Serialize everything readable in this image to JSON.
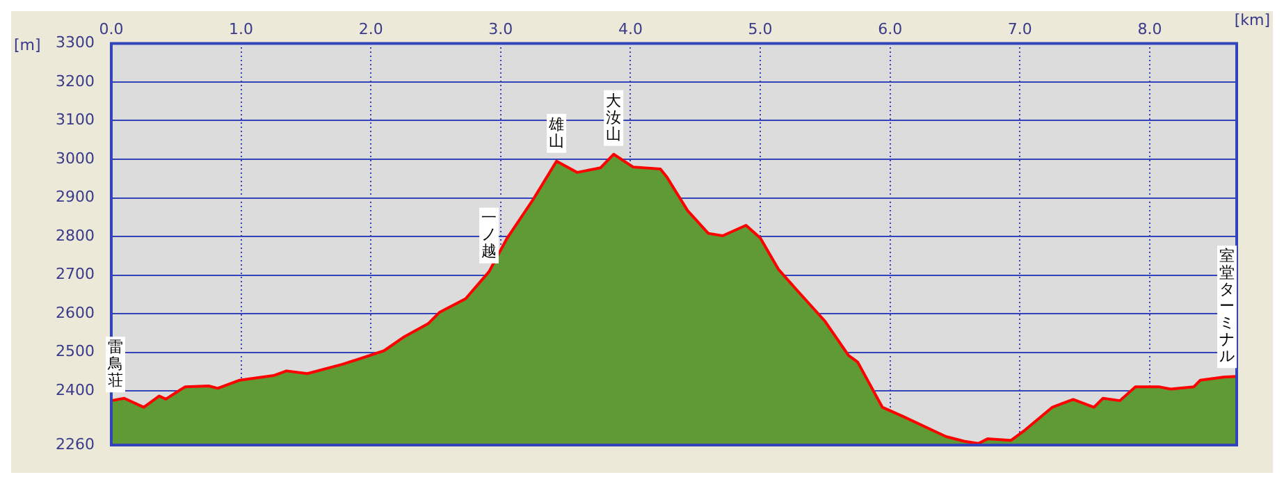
{
  "chart_data": {
    "type": "area",
    "xlabel": "[km]",
    "ylabel": "[m]",
    "xlim": [
      0,
      8.67
    ],
    "ylim": [
      2260,
      3300
    ],
    "xticks": [
      {
        "value": 0,
        "label": "0.0"
      },
      {
        "value": 1,
        "label": "1.0"
      },
      {
        "value": 2,
        "label": "2.0"
      },
      {
        "value": 3,
        "label": "3.0"
      },
      {
        "value": 4,
        "label": "4.0"
      },
      {
        "value": 5,
        "label": "5.0"
      },
      {
        "value": 6,
        "label": "6.0"
      },
      {
        "value": 7,
        "label": "7.0"
      },
      {
        "value": 8,
        "label": "8.0"
      }
    ],
    "yticks": [
      2260,
      2400,
      2500,
      2600,
      2700,
      2800,
      2900,
      3000,
      3100,
      3200,
      3300
    ],
    "grid": true,
    "series": [
      {
        "color": "#5f9a35",
        "x": [
          0,
          0.1,
          0.25,
          0.37,
          0.42,
          0.57,
          0.75,
          0.82,
          0.99,
          1.25,
          1.35,
          1.51,
          1.78,
          2.1,
          2.25,
          2.44,
          2.53,
          2.73,
          2.91,
          3.05,
          3.25,
          3.43,
          3.59,
          3.77,
          3.87,
          4.02,
          4.23,
          4.28,
          4.44,
          4.6,
          4.71,
          4.89,
          5,
          5.14,
          5.28,
          5.5,
          5.68,
          5.75,
          5.94,
          6.1,
          6.43,
          6.57,
          6.68,
          6.75,
          6.93,
          7.04,
          7.25,
          7.41,
          7.57,
          7.64,
          7.77,
          7.89,
          8.07,
          8.16,
          8.34,
          8.39,
          8.57,
          8.67
        ],
        "values": [
          2375,
          2381,
          2358,
          2387,
          2379,
          2411,
          2413,
          2407,
          2428,
          2440,
          2452,
          2445,
          2469,
          2504,
          2539,
          2574,
          2604,
          2639,
          2709,
          2796,
          2896,
          2995,
          2966,
          2978,
          3013,
          2980,
          2975,
          2954,
          2867,
          2808,
          2802,
          2829,
          2796,
          2715,
          2662,
          2580,
          2492,
          2475,
          2358,
          2334,
          2282,
          2270,
          2264,
          2276,
          2272,
          2299,
          2358,
          2378,
          2358,
          2381,
          2375,
          2411,
          2411,
          2405,
          2411,
          2428,
          2436,
          2438
        ]
      },
      {
        "type": "line",
        "color": "#ff0000",
        "x": [
          0,
          0.1,
          0.25,
          0.37,
          0.42,
          0.57,
          0.75,
          0.82,
          0.99,
          1.25,
          1.35,
          1.51,
          1.78,
          2.1,
          2.25,
          2.44,
          2.53,
          2.73,
          2.91,
          3.05,
          3.25,
          3.43,
          3.59,
          3.77,
          3.87,
          4.02,
          4.23,
          4.28,
          4.44,
          4.6,
          4.71,
          4.89,
          5,
          5.14,
          5.28,
          5.5,
          5.68,
          5.75,
          5.94,
          6.1,
          6.43,
          6.57,
          6.68,
          6.75,
          6.93,
          7.04,
          7.25,
          7.41,
          7.57,
          7.64,
          7.77,
          7.89,
          8.07,
          8.16,
          8.34,
          8.39,
          8.57,
          8.67
        ],
        "values": [
          2375,
          2381,
          2358,
          2387,
          2379,
          2411,
          2413,
          2407,
          2428,
          2440,
          2452,
          2445,
          2469,
          2504,
          2539,
          2574,
          2604,
          2639,
          2709,
          2796,
          2896,
          2995,
          2966,
          2978,
          3013,
          2980,
          2975,
          2954,
          2867,
          2808,
          2802,
          2829,
          2796,
          2715,
          2662,
          2580,
          2492,
          2475,
          2358,
          2334,
          2282,
          2270,
          2264,
          2276,
          2272,
          2299,
          2358,
          2378,
          2358,
          2381,
          2375,
          2411,
          2411,
          2405,
          2411,
          2428,
          2436,
          2438
        ]
      }
    ],
    "annotations": [
      {
        "text": "雷鳥荘",
        "x": 0,
        "y": 2375
      },
      {
        "text": "一ノ越",
        "x": 2.91,
        "y": 2709
      },
      {
        "text": "雄山",
        "x": 3.43,
        "y": 2995
      },
      {
        "text": "大汝山",
        "x": 3.87,
        "y": 3013
      },
      {
        "text": "室堂ターミナル",
        "x": 8.67,
        "y": 2438
      }
    ]
  }
}
